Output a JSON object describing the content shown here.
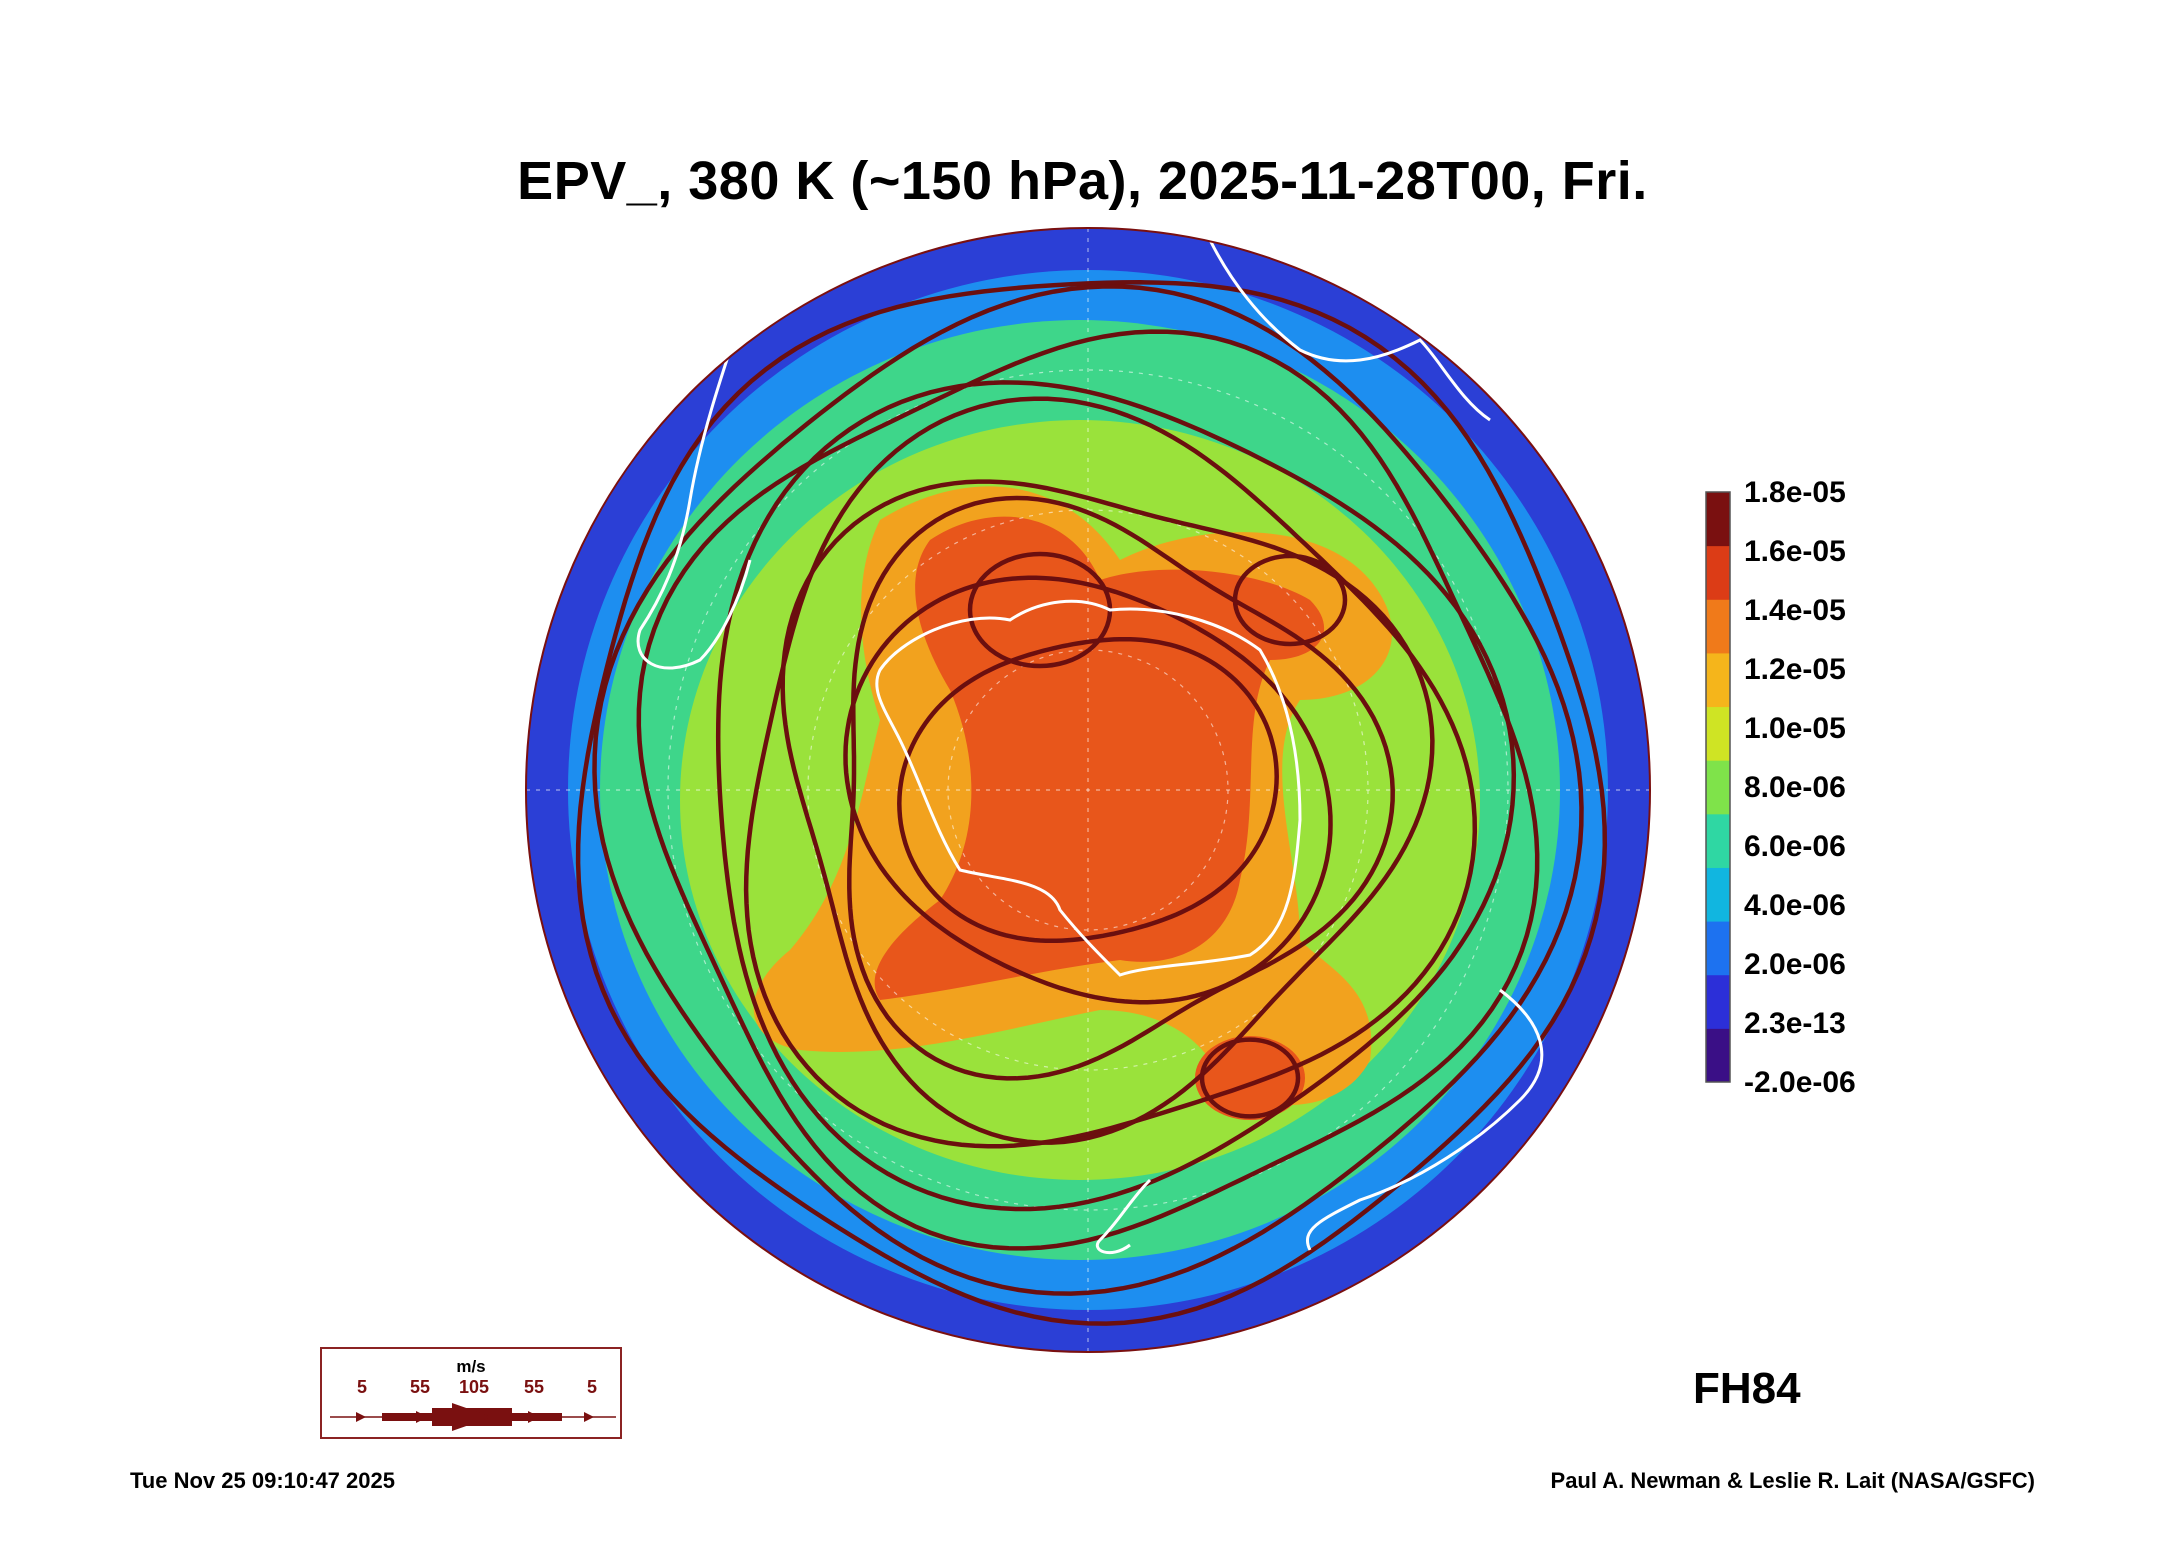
{
  "title": "EPV_, 380 K (~150 hPa), 2025-11-28T00, Fri.",
  "colorbar": {
    "labels": [
      "1.8e-05",
      "1.6e-05",
      "1.4e-05",
      "1.2e-05",
      "1.0e-05",
      "8.0e-06",
      "6.0e-06",
      "4.0e-06",
      "2.0e-06",
      "2.3e-13",
      "-2.0e-06"
    ],
    "colors": [
      "#3a0f86",
      "#2c2fd8",
      "#1d72f0",
      "#11b6e0",
      "#2fd7a3",
      "#7fe34a",
      "#cfe424",
      "#f5b51b",
      "#f07a1a",
      "#dc3c16",
      "#7a1010"
    ]
  },
  "map": {
    "projection": "south polar stereographic",
    "field": "EPV_",
    "field_colors": {
      "ring": "#2b3fd6",
      "outer": "#1d8ef0",
      "mid": "#3ed68a",
      "inner": "#9ae23b",
      "warm": "#f2a21e",
      "core": "#e8561b"
    },
    "coastline_color": "#ffffff",
    "streamline_color": "#6b0f0f"
  },
  "forecast_hour": "FH84",
  "wind_legend": {
    "unit": "m/s",
    "ticks": [
      "5",
      "55",
      "105",
      "55",
      "5"
    ],
    "color": "#7a1010"
  },
  "timestamp": "Tue Nov 25 09:10:47 2025",
  "credit": "Paul A. Newman & Leslie R. Lait (NASA/GSFC)"
}
